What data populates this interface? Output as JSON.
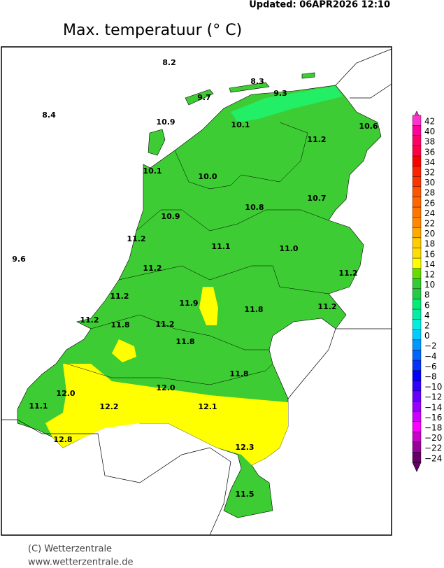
{
  "header": {
    "updated": "Updated:  06APR2026  12:10",
    "title": "Max. temperatuur (° C)"
  },
  "stations": [
    "8.2",
    "8.3",
    "9.3",
    "9.7",
    "8.4",
    "10.9",
    "10.1",
    "10.6",
    "11.2",
    "10.1",
    "10.0",
    "10.8",
    "10.7",
    "10.9",
    "11.2",
    "11.1",
    "11.0",
    "9.6",
    "11.2",
    "11.2",
    "11.2",
    "11.9",
    "11.8",
    "11.2",
    "11.2",
    "11.8",
    "11.2",
    "11.8",
    "11.8",
    "12.0",
    "12.0",
    "11.1",
    "12.2",
    "12.1",
    "12.8",
    "12.3",
    "11.5"
  ],
  "legend": [
    "42",
    "40",
    "38",
    "36",
    "34",
    "32",
    "30",
    "28",
    "26",
    "24",
    "22",
    "20",
    "18",
    "16",
    "14",
    "12",
    "10",
    "8",
    "6",
    "4",
    "2",
    "0",
    "−2",
    "−4",
    "−6",
    "−8",
    "−10",
    "−12",
    "−14",
    "−16",
    "−18",
    "−20",
    "−22",
    "−24"
  ],
  "footer": {
    "copyright": "(C) Wetterzentrale",
    "url": "www.wetterzentrale.de"
  }
}
